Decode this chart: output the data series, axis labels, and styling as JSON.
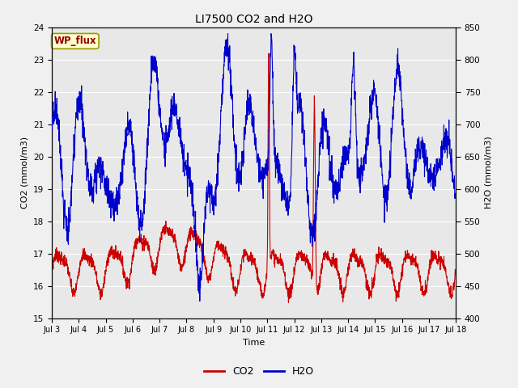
{
  "title": "LI7500 CO2 and H2O",
  "xlabel": "Time",
  "ylabel_left": "CO2 (mmol/m3)",
  "ylabel_right": "H2O (mmol/m3)",
  "co2_ylim": [
    15.0,
    24.0
  ],
  "h2o_ylim": [
    400,
    850
  ],
  "co2_color": "#cc0000",
  "h2o_color": "#0000cc",
  "fig_facecolor": "#f0f0f0",
  "plot_bg_color": "#e8e8e8",
  "annotation_text": "WP_flux",
  "annotation_bg": "#ffffcc",
  "annotation_border": "#999900",
  "legend_co2": "CO2",
  "legend_h2o": "H2O",
  "x_tick_labels": [
    "Jul 3",
    "Jul 4",
    "Jul 5",
    "Jul 6",
    "Jul 7",
    "Jul 8",
    "Jul 9",
    "Jul 10",
    "Jul 11",
    "Jul 12",
    "Jul 13",
    "Jul 14",
    "Jul 15",
    "Jul 16",
    "Jul 17",
    "Jul 18"
  ],
  "co2_yticks": [
    15.0,
    16.0,
    17.0,
    18.0,
    19.0,
    20.0,
    21.0,
    22.0,
    23.0,
    24.0
  ],
  "h2o_yticks": [
    400,
    450,
    500,
    550,
    600,
    650,
    700,
    750,
    800,
    850
  ],
  "n_points": 2000,
  "grid_color": "#ffffff",
  "grid_alpha": 1.0
}
